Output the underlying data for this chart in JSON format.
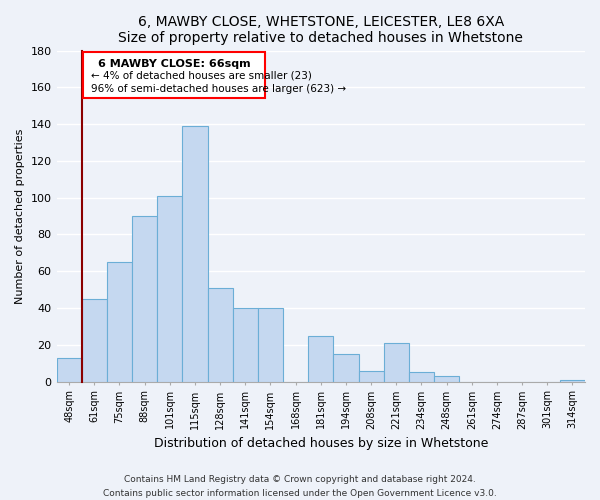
{
  "title": "6, MAWBY CLOSE, WHETSTONE, LEICESTER, LE8 6XA",
  "subtitle": "Size of property relative to detached houses in Whetstone",
  "xlabel": "Distribution of detached houses by size in Whetstone",
  "ylabel": "Number of detached properties",
  "bar_color": "#c5d8f0",
  "bar_edge_color": "#6baed6",
  "categories": [
    "48sqm",
    "61sqm",
    "75sqm",
    "88sqm",
    "101sqm",
    "115sqm",
    "128sqm",
    "141sqm",
    "154sqm",
    "168sqm",
    "181sqm",
    "194sqm",
    "208sqm",
    "221sqm",
    "234sqm",
    "248sqm",
    "261sqm",
    "274sqm",
    "287sqm",
    "301sqm",
    "314sqm"
  ],
  "values": [
    13,
    45,
    65,
    90,
    101,
    139,
    51,
    40,
    40,
    0,
    25,
    15,
    6,
    21,
    5,
    3,
    0,
    0,
    0,
    0,
    1
  ],
  "ylim": [
    0,
    180
  ],
  "yticks": [
    0,
    20,
    40,
    60,
    80,
    100,
    120,
    140,
    160,
    180
  ],
  "property_line_x": 1,
  "annotation_title": "6 MAWBY CLOSE: 66sqm",
  "annotation_line1": "← 4% of detached houses are smaller (23)",
  "annotation_line2": "96% of semi-detached houses are larger (623) →",
  "footer1": "Contains HM Land Registry data © Crown copyright and database right 2024.",
  "footer2": "Contains public sector information licensed under the Open Government Licence v3.0.",
  "background_color": "#eef2f9",
  "grid_color": "#ffffff",
  "title_fontsize": 10,
  "subtitle_fontsize": 9
}
